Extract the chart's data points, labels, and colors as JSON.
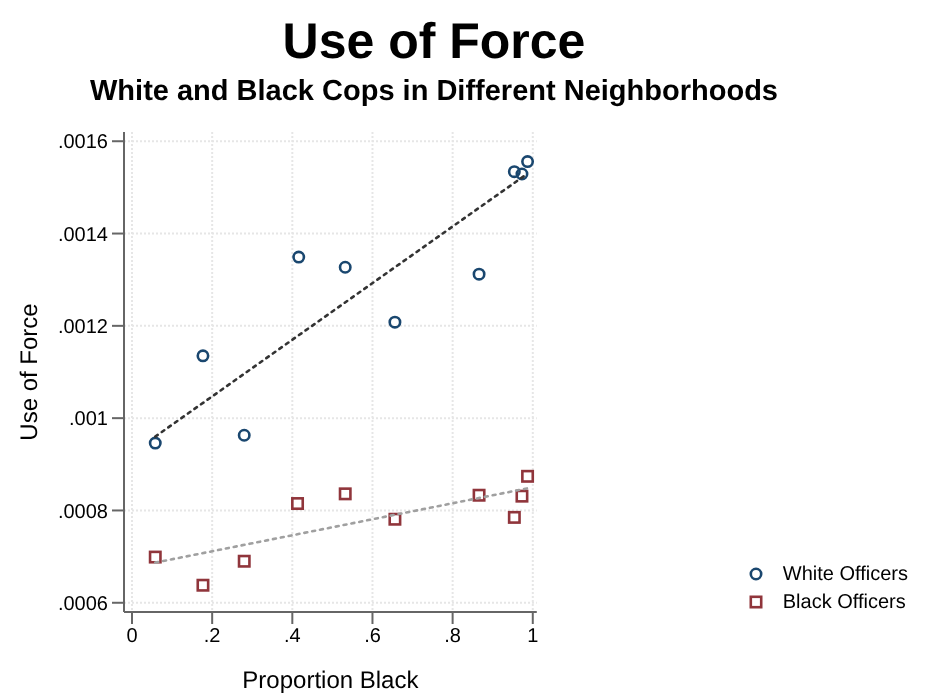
{
  "chart_data": {
    "type": "scatter",
    "title": "Use of Force",
    "subtitle": "White and Black Cops in Different Neighborhoods",
    "xlabel": "Proportion Black",
    "ylabel": "Use of Force",
    "series": [
      {
        "name": "White Officers",
        "color": "#1a476f",
        "marker": "circle",
        "x": [
          0.058,
          0.177,
          0.28,
          0.416,
          0.532,
          0.656,
          0.866,
          0.954,
          0.973,
          0.987
        ],
        "values": [
          0.000946,
          0.001135,
          0.000963,
          0.001349,
          0.001327,
          0.001208,
          0.001312,
          0.001534,
          0.001529,
          0.001556
        ]
      },
      {
        "name": "Black Officers",
        "color": "#90353b",
        "marker": "square",
        "x": [
          0.058,
          0.177,
          0.28,
          0.413,
          0.532,
          0.656,
          0.866,
          0.954,
          0.973,
          0.987
        ],
        "values": [
          0.000699,
          0.000638,
          0.00069,
          0.000815,
          0.000836,
          0.000781,
          0.000833,
          0.000785,
          0.000831,
          0.000874
        ]
      },
      {
        "type": "line",
        "color": "#333333",
        "line_style": "dotted",
        "marker": "none",
        "x": [
          0.058,
          0.987
        ],
        "values": [
          0.00096,
          0.00153
        ]
      },
      {
        "type": "line",
        "color": "#a0a0a0",
        "line_style": "dotted",
        "marker": "none",
        "x": [
          0.058,
          0.987
        ],
        "values": [
          0.000687,
          0.000848
        ]
      }
    ],
    "xlim": [
      -0.02,
      1.01
    ],
    "xticks": [
      0,
      {
        "value": 0.2,
        "label": ".2"
      },
      {
        "value": 0.4,
        "label": ".4"
      },
      {
        "value": 0.6,
        "label": ".6"
      },
      {
        "value": 0.8,
        "label": ".8"
      },
      1
    ],
    "ylim": [
      0.00058,
      0.00162
    ],
    "yticks": [
      {
        "value": 0.0006,
        "label": ".0006"
      },
      {
        "value": 0.0008,
        "label": ".0008"
      },
      {
        "value": 0.001,
        "label": ".001"
      },
      {
        "value": 0.0012,
        "label": ".0012"
      },
      {
        "value": 0.0014,
        "label": ".0014"
      },
      {
        "value": 0.0016,
        "label": ".0016"
      }
    ],
    "grid": true,
    "legend": "bottom right"
  }
}
